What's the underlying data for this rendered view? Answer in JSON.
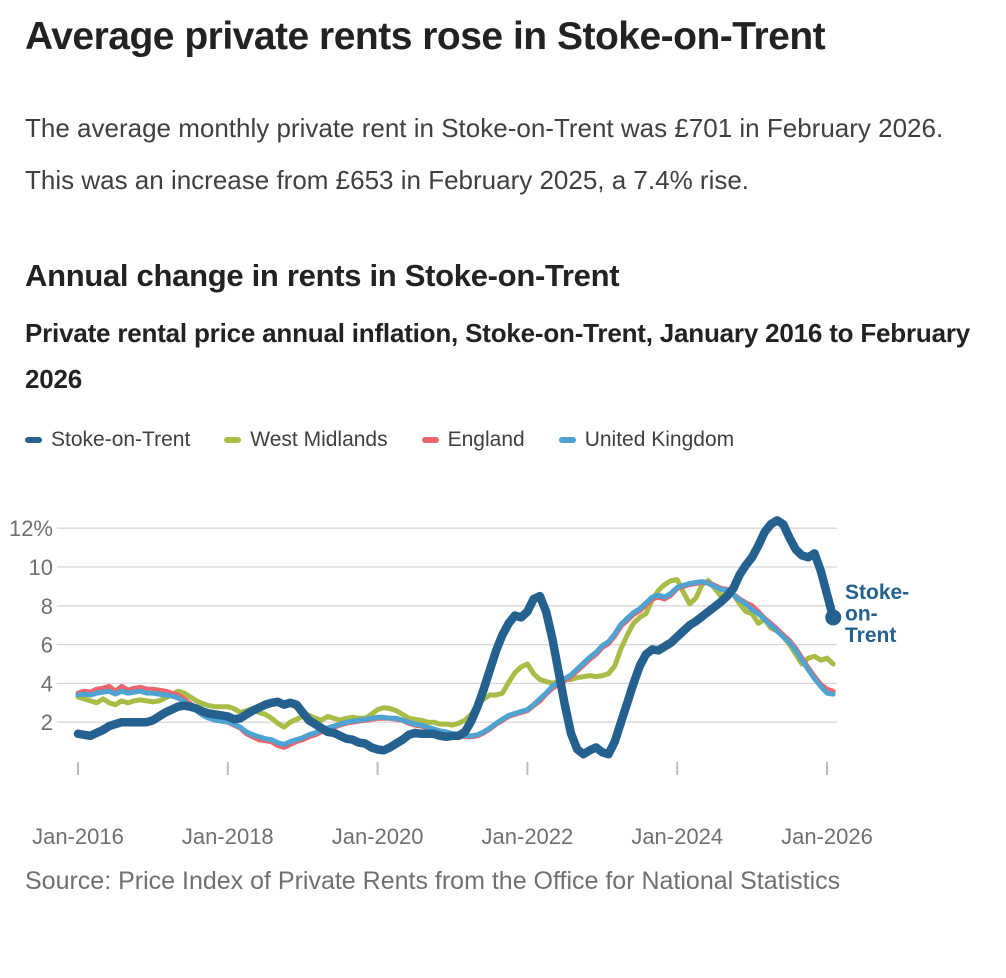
{
  "page": {
    "title": "Average private rents rose in Stoke-on-Trent",
    "intro": "The average monthly private rent in Stoke-on-Trent was £701 in February 2026. This was an increase from £653 in February 2025, a 7.4% rise.",
    "section_heading": "Annual change in rents in Stoke-on-Trent",
    "chart_subtitle": "Private rental price annual inflation, Stoke-on-Trent, January 2016 to February 2026",
    "source": "Source: Price Index of Private Rents from the Office for National Statistics"
  },
  "annotation": {
    "lines": [
      "Stoke-",
      "on-",
      "Trent"
    ],
    "color": "#24618e"
  },
  "colors": {
    "heading": "#222222",
    "body_text": "#404042",
    "axis_text": "#707070",
    "gridline": "#d8d8d8",
    "tick": "#bdbdbd"
  },
  "chart_data": {
    "type": "line",
    "title": "Annual change in rents in Stoke-on-Trent",
    "subtitle": "Private rental price annual inflation, Stoke-on-Trent, January 2016 to February 2026",
    "unit": "percent",
    "frequency": "monthly",
    "x_start": "Jan-2016",
    "x_end": "Feb-2026",
    "n_points": 122,
    "ylim": [
      0,
      13
    ],
    "yticks": [
      2,
      4,
      6,
      8,
      10,
      12
    ],
    "ytick_label_top": "12%",
    "xticks": [
      "Jan-2016",
      "Jan-2018",
      "Jan-2020",
      "Jan-2022",
      "Jan-2024",
      "Jan-2026"
    ],
    "xtick_month_index": [
      0,
      24,
      48,
      72,
      96,
      120
    ],
    "grid": "horizontal",
    "legend_position": "top",
    "end_dot_series": "Stoke-on-Trent",
    "series": [
      {
        "name": "Stoke-on-Trent",
        "color": "#24618e",
        "line_width": 8.5,
        "values": [
          1.4,
          1.35,
          1.3,
          1.45,
          1.6,
          1.8,
          1.9,
          2.0,
          2.0,
          2.0,
          2.0,
          2.0,
          2.1,
          2.3,
          2.5,
          2.65,
          2.8,
          2.85,
          2.8,
          2.7,
          2.55,
          2.45,
          2.4,
          2.35,
          2.3,
          2.15,
          2.2,
          2.4,
          2.6,
          2.75,
          2.9,
          3.0,
          3.05,
          2.9,
          3.0,
          2.9,
          2.5,
          2.1,
          1.9,
          1.7,
          1.5,
          1.45,
          1.3,
          1.15,
          1.1,
          0.95,
          0.9,
          0.7,
          0.6,
          0.55,
          0.7,
          0.9,
          1.1,
          1.35,
          1.45,
          1.4,
          1.4,
          1.4,
          1.3,
          1.25,
          1.3,
          1.3,
          1.5,
          2.05,
          2.8,
          3.7,
          4.7,
          5.7,
          6.5,
          7.1,
          7.5,
          7.4,
          7.7,
          8.35,
          8.5,
          7.7,
          6.3,
          4.6,
          2.9,
          1.4,
          0.6,
          0.35,
          0.55,
          0.7,
          0.45,
          0.35,
          1.0,
          2.0,
          3.0,
          4.0,
          4.9,
          5.5,
          5.75,
          5.7,
          5.9,
          6.1,
          6.4,
          6.7,
          7.0,
          7.2,
          7.45,
          7.7,
          7.95,
          8.2,
          8.5,
          8.9,
          9.6,
          10.1,
          10.5,
          11.1,
          11.8,
          12.2,
          12.4,
          12.2,
          11.5,
          10.9,
          10.6,
          10.5,
          10.7,
          9.8,
          8.6,
          7.4
        ]
      },
      {
        "name": "West Midlands",
        "color": "#a9bc45",
        "line_width": 5,
        "values": [
          3.3,
          3.2,
          3.1,
          3.0,
          3.2,
          3.0,
          2.9,
          3.1,
          3.0,
          3.1,
          3.15,
          3.1,
          3.05,
          3.1,
          3.25,
          3.4,
          3.6,
          3.5,
          3.3,
          3.1,
          2.95,
          2.85,
          2.8,
          2.8,
          2.8,
          2.7,
          2.5,
          2.6,
          2.7,
          2.5,
          2.4,
          2.2,
          1.95,
          1.75,
          2.0,
          2.15,
          2.3,
          2.35,
          2.2,
          2.1,
          2.3,
          2.2,
          2.1,
          2.2,
          2.25,
          2.2,
          2.2,
          2.4,
          2.65,
          2.75,
          2.7,
          2.6,
          2.4,
          2.2,
          2.15,
          2.1,
          2.0,
          2.0,
          1.9,
          1.9,
          1.85,
          1.95,
          2.1,
          2.4,
          2.9,
          3.2,
          3.4,
          3.4,
          3.5,
          4.05,
          4.55,
          4.85,
          5.0,
          4.5,
          4.2,
          4.1,
          4.0,
          4.1,
          4.2,
          4.2,
          4.3,
          4.35,
          4.4,
          4.35,
          4.4,
          4.5,
          4.9,
          5.8,
          6.5,
          7.1,
          7.4,
          7.6,
          8.3,
          8.8,
          9.1,
          9.3,
          9.35,
          8.7,
          8.1,
          8.4,
          9.1,
          9.3,
          8.9,
          8.5,
          8.7,
          8.6,
          8.1,
          7.7,
          7.6,
          7.1,
          7.3,
          6.85,
          6.7,
          6.4,
          6.0,
          5.5,
          5.0,
          5.3,
          5.4,
          5.2,
          5.3,
          5.0
        ]
      },
      {
        "name": "England",
        "color": "#ec646c",
        "line_width": 5,
        "values": [
          3.5,
          3.6,
          3.55,
          3.7,
          3.75,
          3.85,
          3.6,
          3.85,
          3.65,
          3.75,
          3.8,
          3.7,
          3.7,
          3.65,
          3.6,
          3.5,
          3.4,
          3.2,
          2.95,
          2.7,
          2.4,
          2.25,
          2.15,
          2.05,
          2.0,
          1.85,
          1.7,
          1.4,
          1.25,
          1.1,
          1.05,
          1.0,
          0.8,
          0.7,
          0.85,
          1.0,
          1.1,
          1.25,
          1.35,
          1.5,
          1.6,
          1.75,
          1.85,
          1.95,
          2.0,
          2.05,
          2.1,
          2.15,
          2.2,
          2.2,
          2.2,
          2.15,
          2.1,
          1.95,
          1.85,
          1.8,
          1.7,
          1.6,
          1.5,
          1.45,
          1.35,
          1.3,
          1.25,
          1.25,
          1.3,
          1.45,
          1.65,
          1.9,
          2.1,
          2.3,
          2.4,
          2.5,
          2.6,
          2.85,
          3.1,
          3.45,
          3.75,
          3.95,
          4.15,
          4.35,
          4.65,
          4.95,
          5.25,
          5.5,
          5.85,
          6.05,
          6.45,
          6.95,
          7.25,
          7.55,
          7.75,
          8.05,
          8.35,
          8.45,
          8.35,
          8.55,
          8.9,
          9.0,
          9.1,
          9.15,
          9.2,
          9.2,
          9.05,
          8.9,
          8.85,
          8.6,
          8.35,
          8.15,
          8.0,
          7.7,
          7.35,
          7.1,
          6.8,
          6.5,
          6.2,
          5.8,
          5.3,
          4.8,
          4.35,
          3.95,
          3.7,
          3.6
        ]
      },
      {
        "name": "United Kingdom",
        "color": "#4ea3d1",
        "line_width": 5,
        "values": [
          3.4,
          3.45,
          3.4,
          3.5,
          3.55,
          3.6,
          3.45,
          3.6,
          3.5,
          3.55,
          3.6,
          3.5,
          3.5,
          3.45,
          3.4,
          3.35,
          3.25,
          3.05,
          2.85,
          2.6,
          2.35,
          2.2,
          2.1,
          2.05,
          2.0,
          1.9,
          1.75,
          1.5,
          1.35,
          1.25,
          1.15,
          1.1,
          0.95,
          0.85,
          1.0,
          1.1,
          1.2,
          1.35,
          1.45,
          1.6,
          1.7,
          1.8,
          1.9,
          2.0,
          2.05,
          2.1,
          2.15,
          2.2,
          2.25,
          2.25,
          2.2,
          2.2,
          2.1,
          2.0,
          1.9,
          1.85,
          1.75,
          1.65,
          1.55,
          1.5,
          1.4,
          1.35,
          1.3,
          1.3,
          1.35,
          1.5,
          1.7,
          1.95,
          2.15,
          2.35,
          2.45,
          2.55,
          2.65,
          2.9,
          3.2,
          3.5,
          3.85,
          4.05,
          4.25,
          4.45,
          4.75,
          5.05,
          5.35,
          5.6,
          5.95,
          6.15,
          6.55,
          7.05,
          7.35,
          7.65,
          7.85,
          8.15,
          8.45,
          8.55,
          8.45,
          8.65,
          8.95,
          9.05,
          9.15,
          9.2,
          9.25,
          9.15,
          9.0,
          8.85,
          8.8,
          8.55,
          8.3,
          8.1,
          7.8,
          7.6,
          7.3,
          7.0,
          6.7,
          6.4,
          6.1,
          5.7,
          5.2,
          4.7,
          4.25,
          3.85,
          3.5,
          3.45
        ]
      }
    ]
  }
}
